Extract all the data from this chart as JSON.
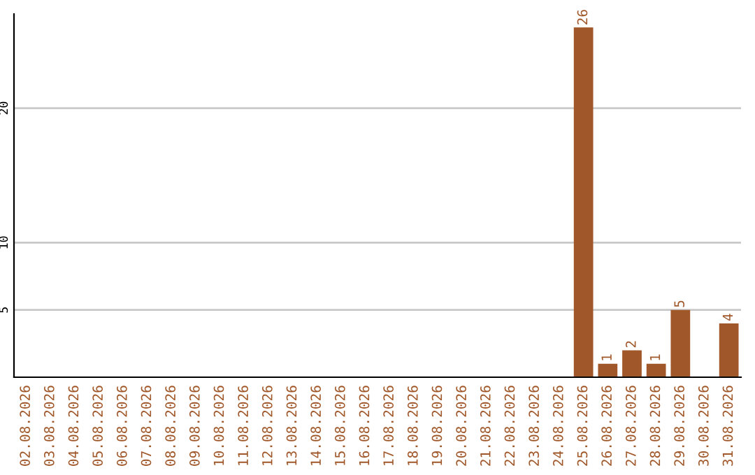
{
  "chart_data": {
    "type": "bar",
    "categories": [
      "02.08.2026",
      "03.08.2026",
      "04.08.2026",
      "05.08.2026",
      "06.08.2026",
      "07.08.2026",
      "08.08.2026",
      "09.08.2026",
      "10.08.2026",
      "11.08.2026",
      "12.08.2026",
      "13.08.2026",
      "14.08.2026",
      "15.08.2026",
      "16.08.2026",
      "17.08.2026",
      "18.08.2026",
      "19.08.2026",
      "20.08.2026",
      "21.08.2026",
      "22.08.2026",
      "23.08.2026",
      "24.08.2026",
      "25.08.2026",
      "26.08.2026",
      "27.08.2026",
      "28.08.2026",
      "29.08.2026",
      "30.08.2026",
      "31.08.2026"
    ],
    "values": [
      0,
      0,
      0,
      0,
      0,
      0,
      0,
      0,
      0,
      0,
      0,
      0,
      0,
      0,
      0,
      0,
      0,
      0,
      0,
      0,
      0,
      0,
      0,
      26,
      1,
      2,
      1,
      5,
      0,
      4
    ],
    "value_labels": [
      null,
      null,
      null,
      null,
      null,
      null,
      null,
      null,
      null,
      null,
      null,
      null,
      null,
      null,
      null,
      null,
      null,
      null,
      null,
      null,
      null,
      null,
      null,
      "26",
      "1",
      "2",
      "1",
      "5",
      null,
      "4"
    ],
    "color": "#a0582a",
    "ylim": [
      0,
      27
    ],
    "yticks": [
      5,
      10,
      20
    ],
    "grid": "y"
  }
}
